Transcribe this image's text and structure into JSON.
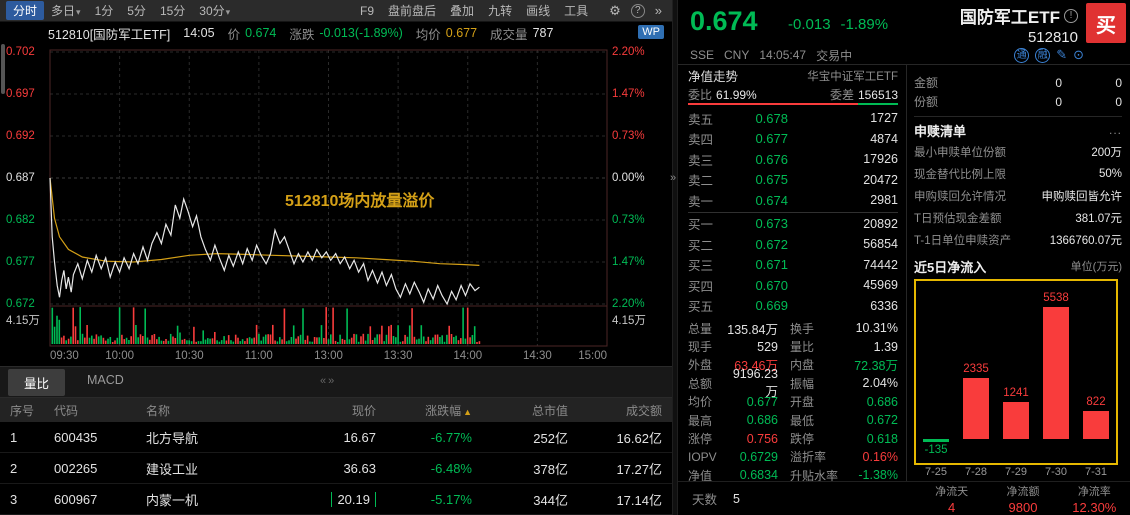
{
  "colors": {
    "up": "#f93c3c",
    "down": "#00bb55",
    "yellow": "#d4a017",
    "blue": "#3b82d4",
    "buy_button": "#e03232",
    "flow_border": "#e6b800"
  },
  "left": {
    "toolbar": {
      "periods": [
        {
          "label": "分时",
          "selected": true
        },
        {
          "label": "多日",
          "caret": true
        },
        {
          "label": "1分"
        },
        {
          "label": "5分"
        },
        {
          "label": "15分"
        },
        {
          "label": "30分",
          "caret": true
        }
      ],
      "tools": [
        "F9",
        "盘前盘后",
        "叠加",
        "九转",
        "画线",
        "工具"
      ]
    },
    "chart_header": {
      "title": "512810[国防军工ETF]",
      "time": "14:05",
      "price_label": "价",
      "price": "0.674",
      "change_label": "涨跌",
      "change": "-0.013(-1.89%)",
      "avg_label": "均价",
      "avg": "0.677",
      "volume_label": "成交量",
      "volume": "787",
      "wp_badge": "WP"
    },
    "chart": {
      "annotation": "512810场内放量溢价",
      "y_axis_left": [
        "0.702",
        "0.697",
        "0.692",
        "0.687",
        "0.682",
        "0.677",
        "0.672"
      ],
      "y_axis_right": [
        "2.20%",
        "1.47%",
        "0.73%",
        "0.00%",
        "0.73%",
        "1.47%",
        "2.20%"
      ],
      "volume_axis_left": "4.15万",
      "volume_axis_right": "4.15万",
      "x_axis": [
        "09:30",
        "10:00",
        "10:30",
        "11:00",
        "13:00",
        "13:30",
        "14:00",
        "14:30",
        "15:00"
      ]
    },
    "chart_data": {
      "type": "line",
      "y_range": [
        0.672,
        0.702
      ],
      "prev_close": 0.687,
      "x_range_minutes": 240,
      "current_minute": 185,
      "series": [
        {
          "name": "price",
          "color": "#e8e8e8",
          "points": [
            [
              0.0,
              0.687
            ],
            [
              0.004,
              0.68
            ],
            [
              0.008,
              0.677
            ],
            [
              0.013,
              0.6742
            ],
            [
              0.017,
              0.6728
            ],
            [
              0.021,
              0.6748
            ],
            [
              0.025,
              0.676
            ],
            [
              0.029,
              0.6738
            ],
            [
              0.033,
              0.6752
            ],
            [
              0.038,
              0.6734
            ],
            [
              0.042,
              0.6755
            ],
            [
              0.05,
              0.6768
            ],
            [
              0.058,
              0.675
            ],
            [
              0.067,
              0.6772
            ],
            [
              0.075,
              0.6758
            ],
            [
              0.083,
              0.6778
            ],
            [
              0.092,
              0.6762
            ],
            [
              0.1,
              0.6775
            ],
            [
              0.108,
              0.6752
            ],
            [
              0.117,
              0.677
            ],
            [
              0.125,
              0.6758
            ],
            [
              0.133,
              0.6775
            ],
            [
              0.142,
              0.6762
            ],
            [
              0.15,
              0.678
            ],
            [
              0.158,
              0.6768
            ],
            [
              0.167,
              0.6788
            ],
            [
              0.175,
              0.6772
            ],
            [
              0.183,
              0.6792
            ],
            [
              0.192,
              0.6805
            ],
            [
              0.2,
              0.6792
            ],
            [
              0.208,
              0.6815
            ],
            [
              0.217,
              0.6802
            ],
            [
              0.225,
              0.6838
            ],
            [
              0.233,
              0.6822
            ],
            [
              0.24,
              0.6845
            ],
            [
              0.248,
              0.683
            ],
            [
              0.256,
              0.6812
            ],
            [
              0.263,
              0.6825
            ],
            [
              0.271,
              0.68
            ],
            [
              0.279,
              0.6785
            ],
            [
              0.288,
              0.6772
            ],
            [
              0.296,
              0.679
            ],
            [
              0.304,
              0.6775
            ],
            [
              0.313,
              0.676
            ],
            [
              0.321,
              0.6778
            ],
            [
              0.329,
              0.6765
            ],
            [
              0.338,
              0.6782
            ],
            [
              0.346,
              0.6768
            ],
            [
              0.354,
              0.6786
            ],
            [
              0.363,
              0.6772
            ],
            [
              0.371,
              0.679
            ],
            [
              0.379,
              0.6778
            ],
            [
              0.388,
              0.6768
            ],
            [
              0.396,
              0.678
            ],
            [
              0.404,
              0.6808
            ],
            [
              0.413,
              0.6792
            ],
            [
              0.421,
              0.68
            ],
            [
              0.429,
              0.6785
            ],
            [
              0.438,
              0.6768
            ],
            [
              0.446,
              0.678
            ],
            [
              0.454,
              0.677
            ],
            [
              0.463,
              0.6782
            ],
            [
              0.471,
              0.6772
            ],
            [
              0.479,
              0.6785
            ],
            [
              0.488,
              0.6775
            ],
            [
              0.496,
              0.6782
            ],
            [
              0.504,
              0.6772
            ],
            [
              0.513,
              0.678
            ],
            [
              0.521,
              0.6768
            ],
            [
              0.529,
              0.6776
            ],
            [
              0.538,
              0.6762
            ],
            [
              0.546,
              0.6772
            ],
            [
              0.554,
              0.6758
            ],
            [
              0.563,
              0.6768
            ],
            [
              0.571,
              0.6748
            ],
            [
              0.579,
              0.676
            ],
            [
              0.588,
              0.6745
            ],
            [
              0.596,
              0.6758
            ],
            [
              0.604,
              0.6742
            ],
            [
              0.613,
              0.6755
            ],
            [
              0.621,
              0.6738
            ],
            [
              0.629,
              0.6728
            ],
            [
              0.638,
              0.6744
            ],
            [
              0.646,
              0.6732
            ],
            [
              0.654,
              0.6746
            ],
            [
              0.663,
              0.6734
            ],
            [
              0.671,
              0.6722
            ],
            [
              0.679,
              0.6738
            ],
            [
              0.688,
              0.6726
            ],
            [
              0.696,
              0.6742
            ],
            [
              0.704,
              0.673
            ],
            [
              0.713,
              0.672
            ],
            [
              0.721,
              0.6735
            ],
            [
              0.729,
              0.6725
            ],
            [
              0.738,
              0.6742
            ],
            [
              0.746,
              0.673
            ],
            [
              0.754,
              0.6744
            ],
            [
              0.763,
              0.6736
            ],
            [
              0.771,
              0.674
            ]
          ]
        },
        {
          "name": "avg",
          "color": "#d4a017",
          "points": [
            [
              0.0,
              0.687
            ],
            [
              0.008,
              0.6822
            ],
            [
              0.017,
              0.68
            ],
            [
              0.033,
              0.6785
            ],
            [
              0.058,
              0.6776
            ],
            [
              0.1,
              0.6771
            ],
            [
              0.15,
              0.677
            ],
            [
              0.2,
              0.6773
            ],
            [
              0.25,
              0.6778
            ],
            [
              0.3,
              0.678
            ],
            [
              0.35,
              0.6779
            ],
            [
              0.4,
              0.6778
            ],
            [
              0.45,
              0.6777
            ],
            [
              0.5,
              0.6776
            ],
            [
              0.55,
              0.6775
            ],
            [
              0.6,
              0.6773
            ],
            [
              0.65,
              0.6771
            ],
            [
              0.7,
              0.6768
            ],
            [
              0.74,
              0.6767
            ],
            [
              0.771,
              0.6766
            ]
          ]
        }
      ]
    },
    "tabs": [
      {
        "label": "量比",
        "selected": true
      },
      {
        "label": "MACD",
        "selected": false
      }
    ],
    "table": {
      "headers": [
        "序号",
        "代码",
        "名称",
        "现价",
        "涨跌幅",
        "总市值",
        "成交额"
      ],
      "sorted_header": "涨跌幅",
      "rows": [
        {
          "seq": "1",
          "code": "600435",
          "name": "北方导航",
          "price": "16.67",
          "chg": "-6.77%",
          "cap": "252亿",
          "amount": "16.62亿",
          "price_boxed": false
        },
        {
          "seq": "2",
          "code": "002265",
          "name": "建设工业",
          "price": "36.63",
          "chg": "-6.48%",
          "cap": "378亿",
          "amount": "17.27亿",
          "price_boxed": false
        },
        {
          "seq": "3",
          "code": "600967",
          "name": "内蒙一机",
          "price": "20.19",
          "chg": "-5.17%",
          "cap": "344亿",
          "amount": "17.14亿",
          "price_boxed": true
        }
      ]
    }
  },
  "right": {
    "quote": {
      "price": "0.674",
      "change": "-0.013",
      "change_pct": "-1.89%",
      "name": "国防军工ETF",
      "code": "512810",
      "buy_label": "买",
      "exchange": "SSE",
      "currency": "CNY",
      "time": "14:05:47",
      "status": "交易中",
      "badges": [
        "通",
        "融"
      ]
    },
    "nav_row": {
      "left": "净值走势",
      "right": "华宝中证军工ETF"
    },
    "weibi": {
      "label1": "委比",
      "value1": "61.99%",
      "label2": "委差",
      "value2": "156513",
      "ratio": 0.81
    },
    "order_book": {
      "asks": [
        [
          "卖五",
          "0.678",
          "1727"
        ],
        [
          "卖四",
          "0.677",
          "4874"
        ],
        [
          "卖三",
          "0.676",
          "17926"
        ],
        [
          "卖二",
          "0.675",
          "20472"
        ],
        [
          "卖一",
          "0.674",
          "2981"
        ]
      ],
      "bids": [
        [
          "买一",
          "0.673",
          "20892"
        ],
        [
          "买二",
          "0.672",
          "56854"
        ],
        [
          "买三",
          "0.671",
          "74442"
        ],
        [
          "买四",
          "0.670",
          "45969"
        ],
        [
          "买五",
          "0.669",
          "6336"
        ]
      ]
    },
    "stats": [
      [
        "总量",
        "135.84万",
        "w",
        "换手",
        "10.31%",
        "w"
      ],
      [
        "现手",
        "529",
        "w",
        "量比",
        "1.39",
        "w"
      ],
      [
        "外盘",
        "63.46万",
        "r",
        "内盘",
        "72.38万",
        "g"
      ],
      [
        "总额",
        "9196.23万",
        "w",
        "振幅",
        "2.04%",
        "w"
      ],
      [
        "均价",
        "0.677",
        "g",
        "开盘",
        "0.686",
        "g"
      ],
      [
        "最高",
        "0.686",
        "g",
        "最低",
        "0.672",
        "g"
      ],
      [
        "涨停",
        "0.756",
        "r",
        "跌停",
        "0.618",
        "g"
      ],
      [
        "IOPV",
        "0.6729",
        "g",
        "溢折率",
        "0.16%",
        "r"
      ],
      [
        "净值",
        "0.6834",
        "g",
        "升贴水率",
        "-1.38%",
        "g"
      ]
    ],
    "account": [
      [
        "金额",
        "0",
        "0"
      ],
      [
        "份额",
        "0",
        "0"
      ]
    ],
    "redeem": {
      "title": "申赎清单",
      "more": "...",
      "rows": [
        [
          "最小申赎单位份额",
          "200万"
        ],
        [
          "现金替代比例上限",
          "50%"
        ],
        [
          "申购赎回允许情况",
          "申购赎回皆允许"
        ],
        [
          "T日预估现金差额",
          "381.07元"
        ],
        [
          "T-1日单位申赎资产",
          "1366760.07元"
        ]
      ]
    },
    "flow": {
      "title": "近5日净流入",
      "unit": "单位(万元)",
      "chart_data": {
        "type": "bar",
        "categories": [
          "7-25",
          "7-28",
          "7-29",
          "7-30",
          "7-31"
        ],
        "values": [
          -135,
          2335,
          1241,
          5538,
          822
        ],
        "bar_color": "#f93c3c",
        "negative_color": "#00bb55"
      },
      "summary": [
        [
          "天数",
          "5",
          "w"
        ],
        [
          "净流天",
          "4",
          "r"
        ],
        [
          "净流额",
          "9800",
          "r"
        ],
        [
          "净流率",
          "12.30%",
          "r"
        ]
      ]
    }
  }
}
